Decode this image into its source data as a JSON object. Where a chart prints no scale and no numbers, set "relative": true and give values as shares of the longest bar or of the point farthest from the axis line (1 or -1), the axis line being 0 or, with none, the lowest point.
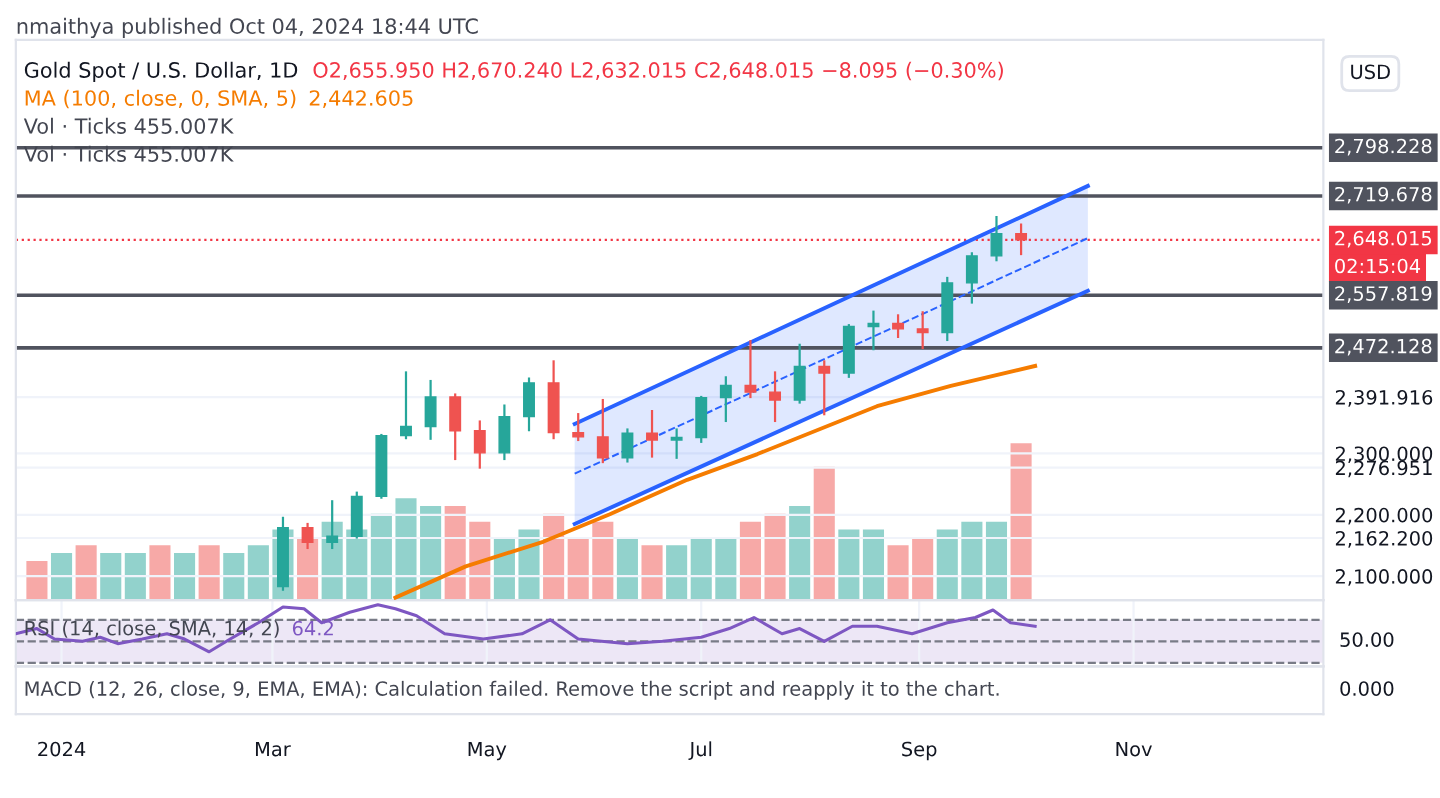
{
  "chart_data": [
    {
      "type": "candlestick",
      "title": "Gold Spot / U.S. Dollar, 1D",
      "subtitle": "O2,655.950 H2,670.240 L2,632.015 C2,648.015 −8.095 (−0.30%)",
      "x": [
        "2024-03-04",
        "2024-03-11",
        "2024-03-18",
        "2024-03-25",
        "2024-04-01",
        "2024-04-08",
        "2024-04-15",
        "2024-04-22",
        "2024-04-29",
        "2024-05-06",
        "2024-05-13",
        "2024-05-20",
        "2024-05-27",
        "2024-06-03",
        "2024-06-10",
        "2024-06-17",
        "2024-06-24",
        "2024-07-01",
        "2024-07-08",
        "2024-07-15",
        "2024-07-22",
        "2024-07-29",
        "2024-08-05",
        "2024-08-12",
        "2024-08-19",
        "2024-08-26",
        "2024-09-02",
        "2024-09-09",
        "2024-09-16",
        "2024-09-23",
        "2024-09-30"
      ],
      "ohlc": [
        [
          2083,
          2195,
          2078,
          2179
        ],
        [
          2179,
          2185,
          2146,
          2155
        ],
        [
          2155,
          2222,
          2146,
          2165
        ],
        [
          2165,
          2236,
          2163,
          2230
        ],
        [
          2230,
          2330,
          2228,
          2329
        ],
        [
          2329,
          2432,
          2325,
          2344
        ],
        [
          2344,
          2418,
          2324,
          2392
        ],
        [
          2392,
          2396,
          2291,
          2337
        ],
        [
          2337,
          2352,
          2277,
          2301
        ],
        [
          2301,
          2378,
          2291,
          2360
        ],
        [
          2360,
          2422,
          2338,
          2415
        ],
        [
          2415,
          2450,
          2325,
          2334
        ],
        [
          2334,
          2364,
          2322,
          2327
        ],
        [
          2327,
          2387,
          2286,
          2293
        ],
        [
          2293,
          2339,
          2287,
          2333
        ],
        [
          2333,
          2369,
          2295,
          2322
        ],
        [
          2322,
          2339,
          2293,
          2326
        ],
        [
          2326,
          2392,
          2319,
          2391
        ],
        [
          2391,
          2424,
          2353,
          2411
        ],
        [
          2411,
          2483,
          2392,
          2400
        ],
        [
          2400,
          2432,
          2353,
          2387
        ],
        [
          2387,
          2477,
          2383,
          2442
        ],
        [
          2442,
          2450,
          2364,
          2431
        ],
        [
          2431,
          2509,
          2425,
          2507
        ],
        [
          2507,
          2531,
          2470,
          2512
        ],
        [
          2512,
          2525,
          2490,
          2503
        ],
        [
          2503,
          2530,
          2472,
          2497
        ],
        [
          2497,
          2586,
          2485,
          2578
        ],
        [
          2578,
          2626,
          2546,
          2622
        ],
        [
          2622,
          2685,
          2615,
          2658
        ],
        [
          2658,
          2673,
          2625,
          2648.015
        ]
      ],
      "colors": [
        "#26a69a",
        "#ef5350",
        "#26a69a",
        "#26a69a",
        "#26a69a",
        "#26a69a",
        "#26a69a",
        "#ef5350",
        "#ef5350",
        "#26a69a",
        "#26a69a",
        "#ef5350",
        "#ef5350",
        "#ef5350",
        "#26a69a",
        "#ef5350",
        "#26a69a",
        "#26a69a",
        "#26a69a",
        "#ef5350",
        "#ef5350",
        "#26a69a",
        "#ef5350",
        "#26a69a",
        "#26a69a",
        "#ef5350",
        "#ef5350",
        "#26a69a",
        "#26a69a",
        "#26a69a",
        "#ef5350"
      ],
      "series": [
        {
          "type": "line",
          "name": "MA (100, close, 0, SMA, 5)",
          "color": "#f57c00",
          "x": [
            "2024-04-05",
            "2024-04-25",
            "2024-05-17",
            "2024-06-05",
            "2024-06-27",
            "2024-07-17",
            "2024-08-20",
            "2024-09-10",
            "2024-10-04"
          ],
          "values": [
            2065,
            2116,
            2156,
            2201,
            2257,
            2299,
            2377,
            2410,
            2442.605
          ]
        },
        {
          "type": "line",
          "color": "#2962ff",
          "x": [
            "2024-05-26",
            "2024-10-19"
          ],
          "values": [
            2348,
            2736
          ]
        },
        {
          "type": "line",
          "color": "#2962ff",
          "x": [
            "2024-05-26",
            "2024-10-19"
          ],
          "values": [
            2185,
            2565
          ]
        },
        {
          "type": "line",
          "color": "#2962ff",
          "line_style": "dashed",
          "x": [
            "2024-05-26",
            "2024-10-19"
          ],
          "values": [
            2267,
            2651
          ],
          "lower": [
            2185,
            2565
          ],
          "upper": [
            2348,
            2736
          ]
        }
      ],
      "xlim": [
        "2023-12-19",
        "2024-12-25"
      ],
      "ylim": [
        2061,
        2974
      ],
      "yticks": [
        {
          "value": 2391.916,
          "label": "2,391.916"
        },
        {
          "value": 2300,
          "label": "2,300.000"
        },
        {
          "value": 2276.951,
          "label": "2,276.951"
        },
        {
          "value": 2200,
          "label": "2,200.000"
        },
        {
          "value": 2162.2,
          "label": "2,162.200"
        },
        {
          "value": 2100,
          "label": "2,100.000"
        }
      ],
      "ref_lines": [
        {
          "axis": "y",
          "value": 2798.228,
          "label": "2,798.228",
          "color": "#50535e"
        },
        {
          "axis": "y",
          "value": 2719.678,
          "label": "2,719.678",
          "color": "#50535e"
        },
        {
          "axis": "y",
          "value": 2557.819,
          "label": "2,557.819",
          "color": "#50535e"
        },
        {
          "axis": "y",
          "value": 2472.128,
          "label": "2,472.128",
          "color": "#50535e"
        },
        {
          "axis": "y",
          "value": 2648.015,
          "label": "2,648.015",
          "color": "#f23645",
          "line_style": "dotted"
        }
      ],
      "annotations": [
        "nmaithya published Oct 04, 2024 18:44 UTC",
        "2,442.605",
        "Vol · Ticks 455.007K",
        "Vol · Ticks 455.007K",
        "USD",
        "02:15:04"
      ],
      "legend": "top left",
      "grid": true,
      "tick_labels": "y"
    },
    {
      "type": "bar",
      "relative": true,
      "x": [
        "2023-12-25",
        "2024-01-01",
        "2024-01-08",
        "2024-01-15",
        "2024-01-22",
        "2024-01-29",
        "2024-02-05",
        "2024-02-12",
        "2024-02-19",
        "2024-02-26",
        "2024-03-04",
        "2024-03-11",
        "2024-03-18",
        "2024-03-25",
        "2024-04-01",
        "2024-04-08",
        "2024-04-15",
        "2024-04-22",
        "2024-04-29",
        "2024-05-06",
        "2024-05-13",
        "2024-05-20",
        "2024-05-27",
        "2024-06-03",
        "2024-06-10",
        "2024-06-17",
        "2024-06-24",
        "2024-07-01",
        "2024-07-08",
        "2024-07-15",
        "2024-07-22",
        "2024-07-29",
        "2024-08-05",
        "2024-08-12",
        "2024-08-19",
        "2024-08-26",
        "2024-09-02",
        "2024-09-09",
        "2024-09-16",
        "2024-09-23",
        "2024-09-30"
      ],
      "values": [
        0.25,
        0.3,
        0.35,
        0.3,
        0.3,
        0.35,
        0.3,
        0.35,
        0.3,
        0.35,
        0.45,
        0.4,
        0.5,
        0.45,
        0.55,
        0.65,
        0.6,
        0.6,
        0.5,
        0.4,
        0.45,
        0.55,
        0.4,
        0.5,
        0.4,
        0.35,
        0.35,
        0.4,
        0.4,
        0.5,
        0.55,
        0.6,
        0.85,
        0.45,
        0.45,
        0.35,
        0.4,
        0.45,
        0.5,
        0.5,
        1
      ],
      "colors": [
        "#ef5350",
        "#26a69a",
        "#ef5350",
        "#26a69a",
        "#26a69a",
        "#ef5350",
        "#26a69a",
        "#ef5350",
        "#26a69a",
        "#26a69a",
        "#26a69a",
        "#ef5350",
        "#26a69a",
        "#26a69a",
        "#26a69a",
        "#26a69a",
        "#26a69a",
        "#ef5350",
        "#ef5350",
        "#26a69a",
        "#26a69a",
        "#ef5350",
        "#ef5350",
        "#ef5350",
        "#26a69a",
        "#ef5350",
        "#26a69a",
        "#26a69a",
        "#26a69a",
        "#ef5350",
        "#ef5350",
        "#26a69a",
        "#ef5350",
        "#26a69a",
        "#26a69a",
        "#ef5350",
        "#ef5350",
        "#26a69a",
        "#26a69a",
        "#26a69a",
        "#ef5350"
      ],
      "xlim": [
        "2023-12-19",
        "2024-12-25"
      ],
      "tick_labels": false
    },
    {
      "type": "line",
      "title": "RSI (14, close, SMA, 14, 2)",
      "relative": true,
      "x": [
        "2023-12-19",
        "2023-12-25",
        "2023-12-30",
        "2024-01-07",
        "2024-01-12",
        "2024-01-17",
        "2024-01-24",
        "2024-01-31",
        "2024-02-05",
        "2024-02-12",
        "2024-02-18",
        "2024-02-26",
        "2024-03-04",
        "2024-03-10",
        "2024-03-15",
        "2024-03-23",
        "2024-03-31",
        "2024-04-05",
        "2024-04-11",
        "2024-04-19",
        "2024-04-30",
        "2024-05-11",
        "2024-05-19",
        "2024-05-27",
        "2024-06-10",
        "2024-06-20",
        "2024-07-01",
        "2024-07-09",
        "2024-07-16",
        "2024-07-24",
        "2024-07-29",
        "2024-08-05",
        "2024-08-13",
        "2024-08-20",
        "2024-08-30",
        "2024-09-09",
        "2024-09-17",
        "2024-09-22",
        "2024-09-27",
        "2024-10-04"
      ],
      "series": [
        {
          "color": "#7e57c2",
          "values": [
            0.5,
            0.59,
            0.41,
            0.37,
            0.44,
            0.33,
            0.41,
            0.5,
            0.41,
            0.19,
            0.41,
            0.69,
            0.96,
            0.93,
            0.69,
            0.87,
            1,
            0.93,
            0.81,
            0.5,
            0.41,
            0.5,
            0.74,
            0.41,
            0.33,
            0.37,
            0.44,
            0.59,
            0.78,
            0.5,
            0.59,
            0.37,
            0.63,
            0.63,
            0.5,
            0.69,
            0.78,
            0.91,
            0.69,
            0.63
          ]
        }
      ],
      "xlim": [
        "2023-12-19",
        "2024-12-25"
      ],
      "xticks": [
        {
          "value": "2024-01-01",
          "label": "2024"
        },
        {
          "value": "2024-03-01",
          "label": "Mar"
        },
        {
          "value": "2024-05-01",
          "label": "May"
        },
        {
          "value": "2024-07-01",
          "label": "Jul"
        },
        {
          "value": "2024-09-01",
          "label": "Sep"
        },
        {
          "value": "2024-11-01",
          "label": "Nov"
        }
      ],
      "ref_lines": [
        {
          "axis": "y",
          "value": 0.74,
          "color": "#787b86",
          "line_style": "dashed"
        },
        {
          "axis": "y",
          "value": 0.37,
          "color": "#787b86",
          "line_style": "dashed"
        },
        {
          "axis": "y",
          "value": 0,
          "color": "#787b86",
          "line_style": "dashed"
        }
      ],
      "bands": [
        {
          "axis": "y",
          "from": 0,
          "to": 0.74,
          "color": "#ede7f6"
        }
      ],
      "annotations": [
        "64.2",
        "50.00"
      ],
      "grid": "x"
    },
    {
      "type": "other",
      "title": "MACD (12, 26, close, 9, EMA, EMA): Calculation failed. Remove the script and reapply it to the chart.",
      "annotations": [
        "0.000"
      ]
    }
  ]
}
